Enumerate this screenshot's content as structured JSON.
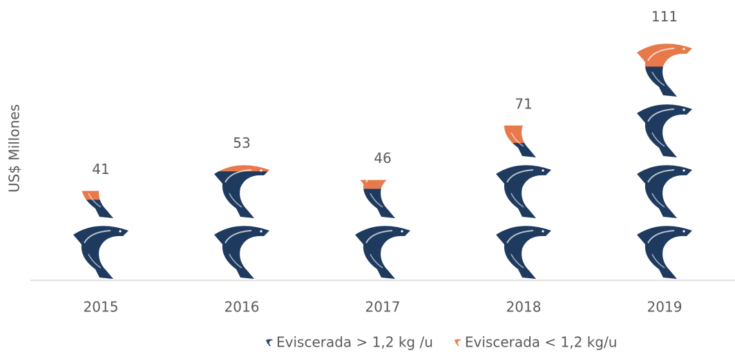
{
  "chart_data": {
    "type": "pictograph-stacked-bar",
    "y_label": "US$ Millones",
    "categories": [
      "2015",
      "2016",
      "2017",
      "2018",
      "2019"
    ],
    "series": [
      {
        "name": "Eviscerada > 1,2 kg /u",
        "color": "#1f3a5f",
        "values": [
          37,
          50,
          42,
          63,
          98
        ]
      },
      {
        "name": "Eviscerada < 1,2 kg/u",
        "color": "#e8794a",
        "values": [
          4,
          3,
          4,
          8,
          13
        ]
      }
    ],
    "totals": [
      41,
      53,
      46,
      71,
      111
    ],
    "ylim": [
      0,
      120
    ]
  }
}
